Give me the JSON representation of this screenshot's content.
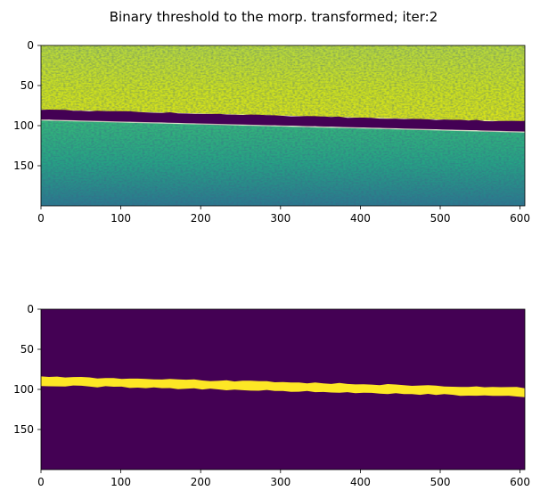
{
  "figure": {
    "title": "Binary threshold to the morp. transformed; iter:2"
  },
  "colors": {
    "viridis_dark": "#440154",
    "viridis_teal": "#21918c",
    "viridis_green": "#3aba76",
    "viridis_yellow": "#e8e419",
    "threshold_yellow": "#fde725",
    "axis": "#000000"
  },
  "chart_data": [
    {
      "type": "heatmap",
      "description_role": "morphologically transformed image (viridis colormap)",
      "xlim": [
        0,
        606
      ],
      "ylim": [
        200,
        0
      ],
      "x_ticks": [
        0,
        100,
        200,
        300,
        400,
        500,
        600
      ],
      "y_ticks": [
        0,
        50,
        100,
        150
      ],
      "band": {
        "y_top_start": 80,
        "y_top_end": 95,
        "y_bottom_start": 93,
        "y_bottom_end": 108
      },
      "regions": [
        {
          "name": "upper",
          "dominant": "yellow-green",
          "y_range": [
            0,
            "band_top"
          ]
        },
        {
          "name": "band",
          "dominant": "dark purple"
        },
        {
          "name": "lower",
          "dominant": "teal-green",
          "y_range": [
            "band_bottom",
            200
          ]
        }
      ]
    },
    {
      "type": "heatmap",
      "description_role": "binary threshold mask",
      "xlim": [
        0,
        606
      ],
      "ylim": [
        200,
        0
      ],
      "x_ticks": [
        0,
        100,
        200,
        300,
        400,
        500,
        600
      ],
      "y_ticks": [
        0,
        50,
        100,
        150
      ],
      "band": {
        "y_top_start": 84,
        "y_top_end": 98,
        "y_bottom_start": 95,
        "y_bottom_end": 109
      },
      "values": {
        "background": 0,
        "band": 1
      }
    }
  ]
}
